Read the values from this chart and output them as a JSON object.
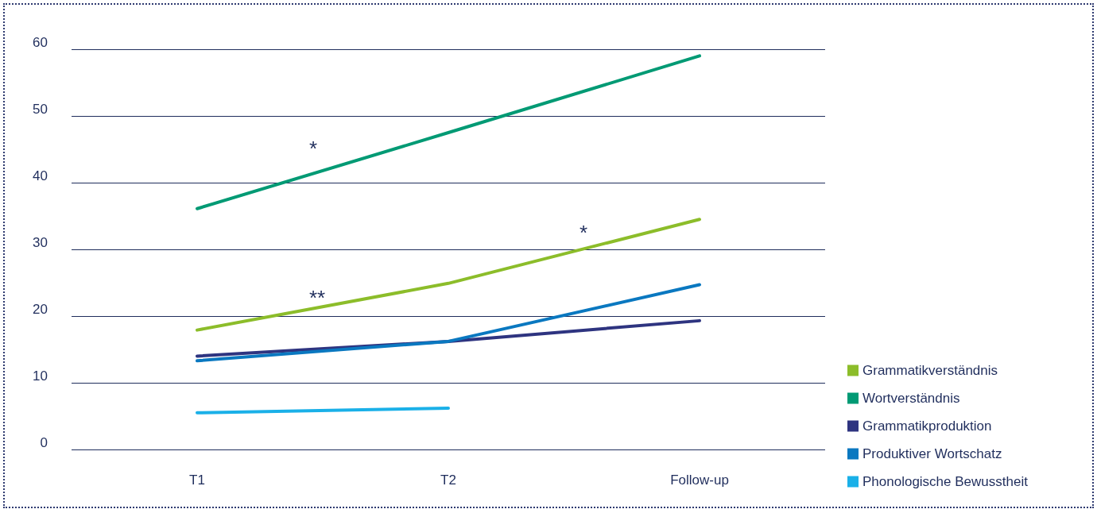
{
  "chart_data": {
    "type": "line",
    "categories": [
      "T1",
      "T2",
      "Follow-up"
    ],
    "series": [
      {
        "name": "Grammatikverständnis",
        "color": "#8cbd2a",
        "values": [
          17.9,
          24.9,
          34.5
        ]
      },
      {
        "name": "Wortverständnis",
        "color": "#009a74",
        "values": [
          36.1,
          47.5,
          59
        ]
      },
      {
        "name": "Grammatikproduktion",
        "color": "#2e3480",
        "values": [
          14,
          16.2,
          19.3
        ]
      },
      {
        "name": "Produktiver Wortschatz",
        "color": "#0a78c0",
        "values": [
          13.3,
          16.2,
          24.7
        ]
      },
      {
        "name": "Phonologische Bewusstheit",
        "color": "#1ab0e8",
        "values": [
          5.5,
          6.2,
          null
        ]
      }
    ],
    "ylim": [
      0,
      60
    ],
    "yticks": [
      0,
      10,
      20,
      30,
      40,
      50,
      60
    ],
    "grid": "y",
    "legend": "bottom right",
    "marker": "none",
    "line_style": "solid",
    "annotations": [
      "*",
      "**",
      "*"
    ]
  }
}
